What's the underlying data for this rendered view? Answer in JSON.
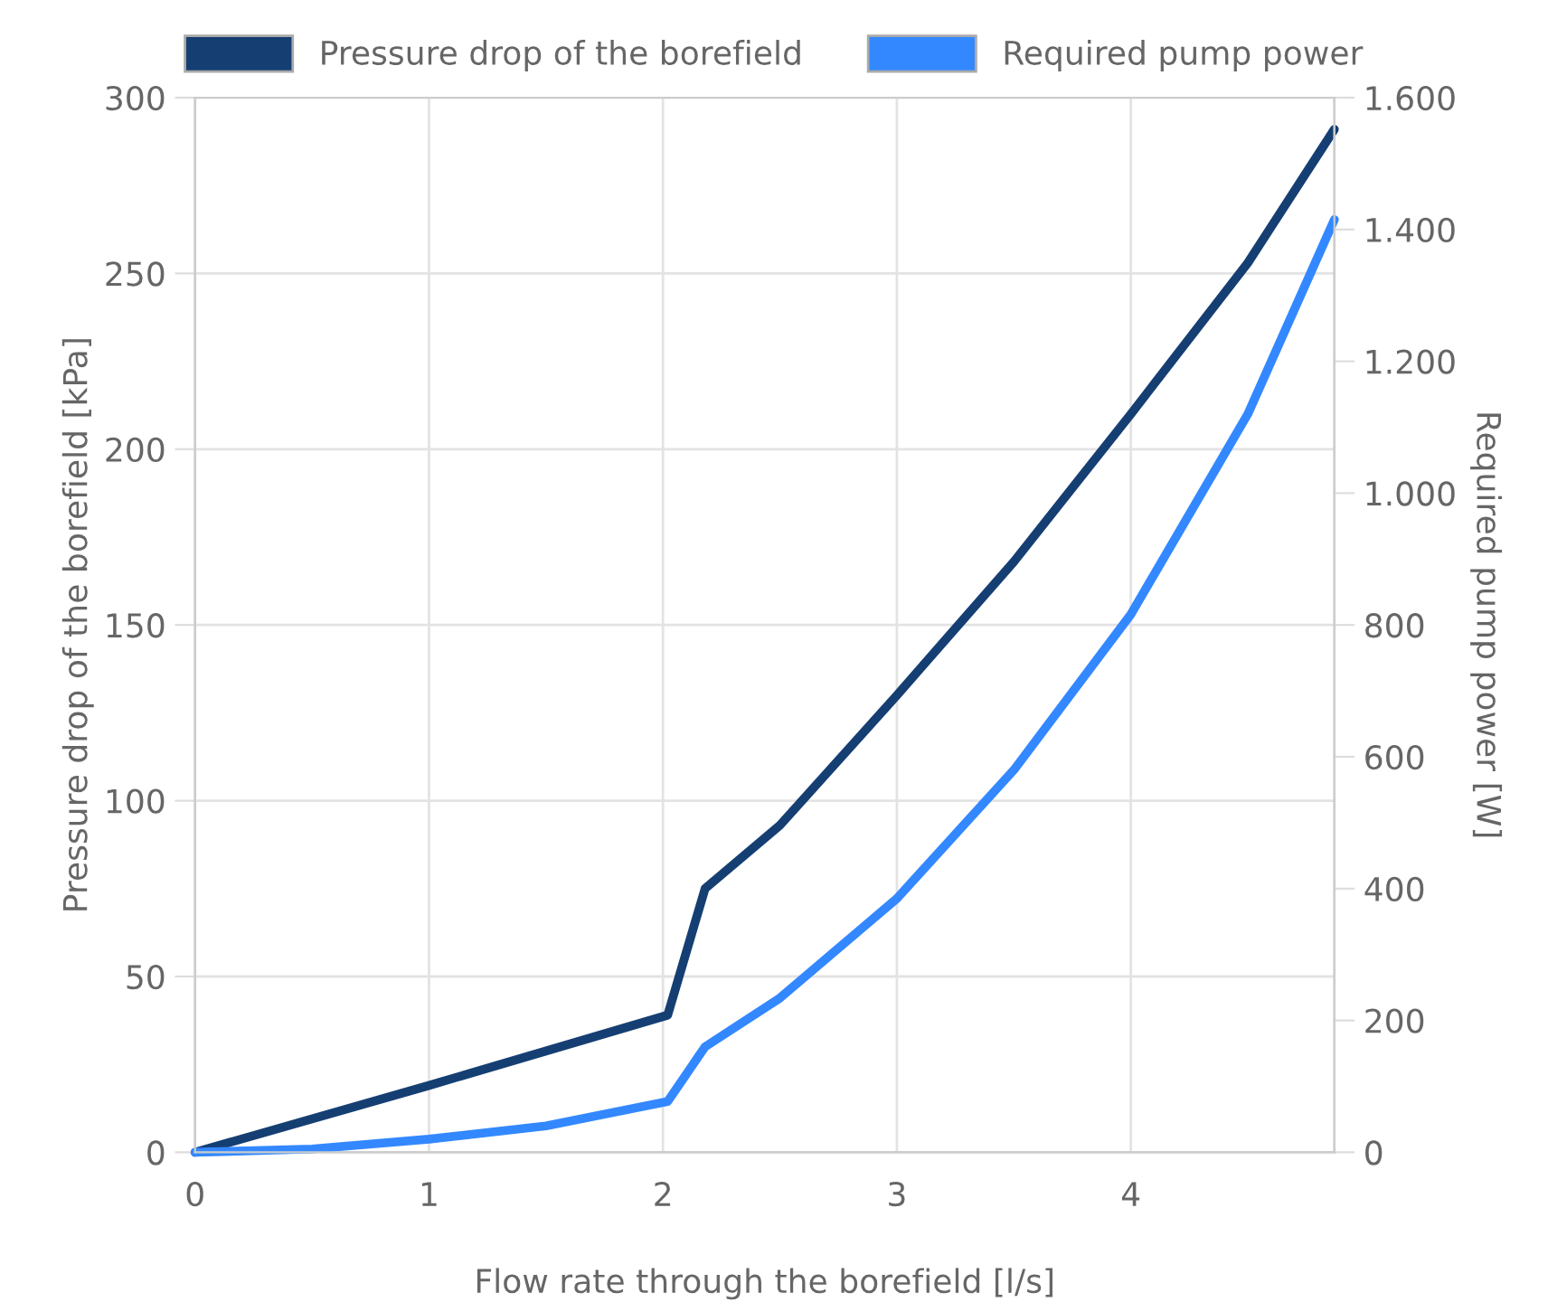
{
  "chart_data": {
    "type": "line",
    "xlabel": "Flow rate through the borefield [l/s]",
    "ylabel": "Pressure drop of the borefield [kPa]",
    "y2label": "Required pump power [W]",
    "series": [
      {
        "name": "Pressure drop of the borefield",
        "color": "#153f73",
        "x": [
          0,
          1,
          2.02,
          2.18,
          2.5,
          3,
          3.5,
          4,
          4.5,
          4.87
        ],
        "values": [
          0,
          19,
          39,
          75,
          93,
          130,
          168,
          210,
          253,
          291
        ]
      },
      {
        "name": "Required pump power",
        "color": "#3388ff",
        "axis": "y2",
        "x": [
          0,
          0.5,
          1,
          1.5,
          2.02,
          2.18,
          2.5,
          3,
          3.5,
          4,
          4.5,
          4.87
        ],
        "values": [
          0,
          5,
          20,
          40,
          77,
          160,
          234,
          385,
          580,
          816,
          1120,
          1415
        ]
      }
    ],
    "xlim": [
      0,
      4.87
    ],
    "xticks": [
      0,
      1,
      2,
      3,
      4
    ],
    "ylim": [
      0,
      300
    ],
    "yticks": [
      0,
      50,
      100,
      150,
      200,
      250,
      300
    ],
    "y2lim": [
      0,
      1600
    ],
    "y2ticks": [
      0,
      {
        "value": 200,
        "label": "200"
      },
      {
        "value": 400,
        "label": "400"
      },
      {
        "value": 600,
        "label": "600"
      },
      {
        "value": 800,
        "label": "800"
      },
      {
        "value": 1000,
        "label": "1.000"
      },
      {
        "value": 1200,
        "label": "1.200"
      },
      {
        "value": 1400,
        "label": "1.400"
      },
      {
        "value": 1600,
        "label": "1.600"
      }
    ],
    "grid": true,
    "legend": "top",
    "marker": "none",
    "line_style": "solid"
  }
}
